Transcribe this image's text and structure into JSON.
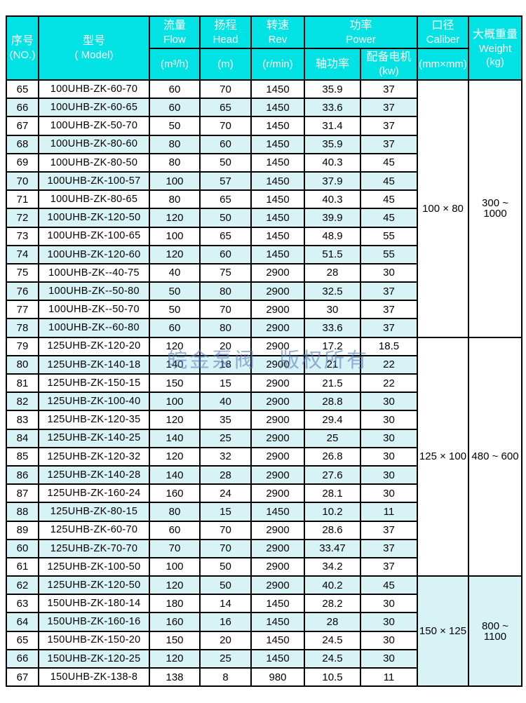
{
  "colors": {
    "header_bg": "#00e2e4",
    "header_text": "#ffffff",
    "row_bg": "#ffffff",
    "row_alt_bg": "#d8f3f6",
    "border": "#000000",
    "watermark": "#5b82c4"
  },
  "watermark": {
    "text": "皖金泵阀　版权所有"
  },
  "table": {
    "header": {
      "no": {
        "line1": "序号",
        "line2": "(NO.)"
      },
      "model": {
        "line1": "型号",
        "line2": "( Model)"
      },
      "flow": {
        "line1": "流量",
        "line2": "Flow",
        "unit": "(m³/h)"
      },
      "head": {
        "line1": "扬程",
        "line2": "Head",
        "unit": "(m)"
      },
      "rev": {
        "line1": "转速",
        "line2": "Rev",
        "unit": "(r/min)"
      },
      "power": {
        "line1": "功率",
        "line2": "Power",
        "sub1": "轴功率",
        "sub2_line1": "配备电机",
        "sub2_line2": "(kw)"
      },
      "caliber": {
        "line1": "口径",
        "line2": "Caliber",
        "unit": "(mm×mm)"
      },
      "weight": {
        "line1": "大概重量",
        "line2": "Weight",
        "line3": "(kg)"
      }
    },
    "sections": [
      {
        "caliber": "100 × 80",
        "weight": "300 ~ 1000",
        "rows": [
          [
            "65",
            "100UHB-ZK-60-70",
            "60",
            "70",
            "1450",
            "35.9",
            "37"
          ],
          [
            "66",
            "100UHB-ZK-60-65",
            "60",
            "65",
            "1450",
            "33.6",
            "37"
          ],
          [
            "67",
            "100UHB-ZK-50-70",
            "50",
            "70",
            "1450",
            "31.4",
            "37"
          ],
          [
            "68",
            "100UHB-ZK-80-60",
            "80",
            "60",
            "1450",
            "35.9",
            "37"
          ],
          [
            "69",
            "100UHB-ZK-80-50",
            "80",
            "50",
            "1450",
            "40.3",
            "45"
          ],
          [
            "70",
            "100UHB-ZK-100-57",
            "100",
            "57",
            "1450",
            "37.9",
            "45"
          ],
          [
            "71",
            "100UHB-ZK-80-65",
            "80",
            "65",
            "1450",
            "40.3",
            "45"
          ],
          [
            "72",
            "100UHB-ZK-120-50",
            "120",
            "50",
            "1450",
            "39.9",
            "45"
          ],
          [
            "73",
            "100UHB-ZK-100-65",
            "100",
            "65",
            "1450",
            "48.9",
            "55"
          ],
          [
            "74",
            "100UHB-ZK-120-60",
            "120",
            "60",
            "1450",
            "51.5",
            "55"
          ],
          [
            "75",
            "100UHB-ZK--40-75",
            "40",
            "75",
            "2900",
            "28",
            "30"
          ],
          [
            "76",
            "100UHB-ZK--50-80",
            "50",
            "80",
            "2900",
            "32.5",
            "37"
          ],
          [
            "77",
            "100UHB-ZK--50-70",
            "50",
            "70",
            "2900",
            "30",
            "37"
          ],
          [
            "78",
            "100UHB-ZK--60-80",
            "60",
            "80",
            "2900",
            "33.6",
            "37"
          ]
        ]
      },
      {
        "caliber": "125 × 100",
        "weight": "480 ~ 600",
        "rows": [
          [
            "79",
            "125UHB-ZK-120-20",
            "120",
            "20",
            "2900",
            "17.2",
            "18.5"
          ],
          [
            "80",
            "125UHB-ZK-140-18",
            "140",
            "18",
            "2900",
            "21",
            "22"
          ],
          [
            "81",
            "125UHB-ZK-150-15",
            "150",
            "15",
            "2900",
            "21.5",
            "22"
          ],
          [
            "82",
            "125UHB-ZK-100-40",
            "100",
            "40",
            "2900",
            "28.8",
            "30"
          ],
          [
            "83",
            "125UHB-ZK-120-35",
            "120",
            "35",
            "2900",
            "29.4",
            "30"
          ],
          [
            "84",
            "125UHB-ZK-140-25",
            "140",
            "25",
            "2900",
            "25",
            "30"
          ],
          [
            "85",
            "125UHB-ZK-120-32",
            "120",
            "32",
            "2900",
            "26.8",
            "30"
          ],
          [
            "86",
            "125UHB-ZK-140-28",
            "140",
            "28",
            "2900",
            "27.6",
            "30"
          ],
          [
            "87",
            "125UHB-ZK-160-24",
            "160",
            "24",
            "2900",
            "28.1",
            "30"
          ],
          [
            "88",
            "125UHB-ZK-80-15",
            "80",
            "15",
            "1450",
            "10.2",
            "11"
          ],
          [
            "89",
            "125UHB-ZK-60-70",
            "60",
            "70",
            "2900",
            "28.6",
            "37"
          ],
          [
            "60",
            "125UHB-ZK-70-70",
            "70",
            "70",
            "2900",
            "33.47",
            "37"
          ],
          [
            "61",
            "125UHB-ZK-100-50",
            "100",
            "50",
            "2900",
            "34.2",
            "37"
          ]
        ]
      },
      {
        "caliber": "150 × 125",
        "weight": "800 ~ 1100",
        "rows": [
          [
            "62",
            "125UHB-ZK-120-50",
            "120",
            "50",
            "2900",
            "40.2",
            "45"
          ],
          [
            "63",
            "150UHB-ZK-180-14",
            "180",
            "14",
            "1450",
            "28.2",
            "30"
          ],
          [
            "64",
            "150UHB-ZK-160-16",
            "160",
            "16",
            "1450",
            "28",
            "30"
          ],
          [
            "65",
            "150UHB-ZK-150-20",
            "150",
            "20",
            "1450",
            "24.5",
            "30"
          ],
          [
            "66",
            "150UHB-ZK-120-25",
            "120",
            "25",
            "1450",
            "24.5",
            "30"
          ],
          [
            "67",
            "150UHB-ZK-138-8",
            "138",
            "8",
            "980",
            "10.5",
            "11"
          ]
        ]
      }
    ]
  }
}
